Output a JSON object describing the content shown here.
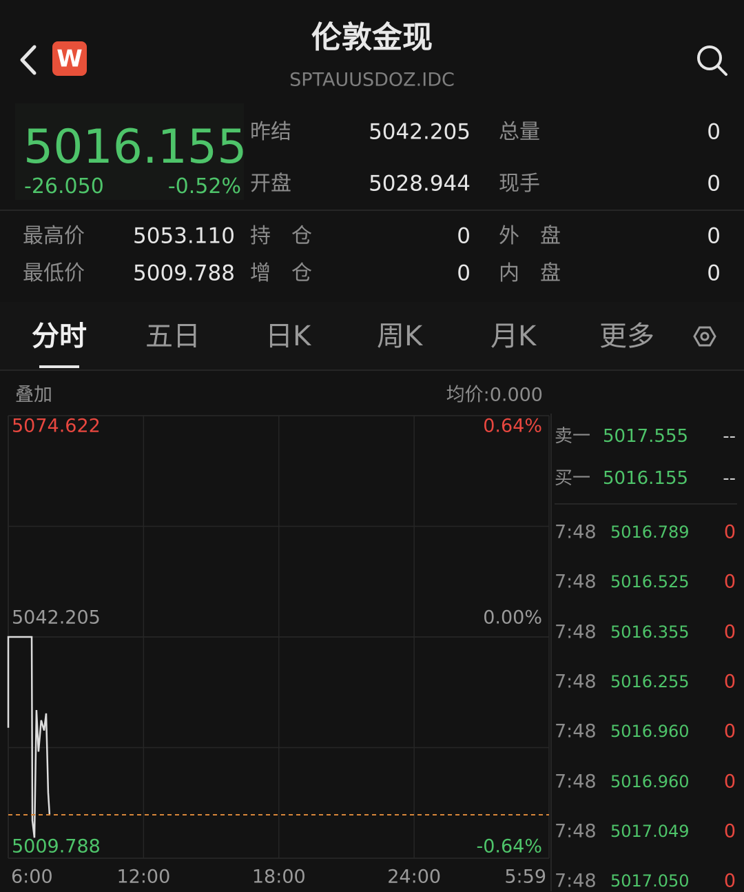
{
  "header": {
    "title": "伦敦金现",
    "code": "SPTAUUSDOZ.IDC",
    "logo": "W"
  },
  "quote": {
    "price": "5016.155",
    "change": "-26.050",
    "change_pct": "-0.52%"
  },
  "stats": [
    [
      {
        "label": "昨结",
        "value": "5042.205"
      },
      {
        "label": "总量",
        "value": "0"
      }
    ],
    [
      {
        "label": "开盘",
        "value": "5028.944"
      },
      {
        "label": "现手",
        "value": "0"
      }
    ],
    [
      {
        "label": "最高价",
        "value": "5053.110"
      },
      {
        "label": "持　仓",
        "value": "0"
      },
      {
        "label": "外　盘",
        "value": "0"
      }
    ],
    [
      {
        "label": "最低价",
        "value": "5009.788"
      },
      {
        "label": "增　仓",
        "value": "0"
      },
      {
        "label": "内　盘",
        "value": "0"
      }
    ]
  ],
  "tabs": [
    "分时",
    "五日",
    "日K",
    "周K",
    "月K",
    "更多"
  ],
  "chart": {
    "type": "line",
    "overlay": "叠加",
    "avg_price": "均价:0.000",
    "ylim": [
      5009.788,
      5074.622
    ],
    "yticks": [
      5074.622,
      5042.205,
      5009.788
    ],
    "y2lim": [
      -0.64,
      0.64
    ],
    "y2ticks": [
      {
        "value": 0.64,
        "label": "0.64%"
      },
      {
        "value": 0,
        "label": "0.00%"
      },
      {
        "value": -0.64,
        "label": "-0.64%"
      }
    ],
    "xlim": [
      6,
      29.983
    ],
    "xticks": [
      {
        "value": 6,
        "label": "6:00"
      },
      {
        "value": 12,
        "label": "12:00"
      },
      {
        "value": 18,
        "label": "18:00"
      },
      {
        "value": 24,
        "label": "24:00"
      },
      {
        "value": 29.983,
        "label": "5:59"
      }
    ],
    "line": {
      "color": "#dddddd",
      "x": [
        6.0,
        6.0,
        7.04,
        7.07,
        7.16,
        7.25,
        7.34,
        7.46,
        7.59,
        7.68,
        7.77,
        7.83
      ],
      "y": [
        5028.9,
        5042.2,
        5042.2,
        5015.3,
        5012.8,
        5031.5,
        5025.4,
        5030.0,
        5028.5,
        5031.0,
        5019.4,
        5016.2
      ]
    }
  },
  "order_book": [
    {
      "side": "卖一",
      "price": "5017.555",
      "volume": "--"
    },
    {
      "side": "买一",
      "price": "5016.155",
      "volume": "--"
    }
  ],
  "trades": [
    {
      "time": "7:48",
      "price": "5016.789",
      "volume": "0"
    },
    {
      "time": "7:48",
      "price": "5016.525",
      "volume": "0"
    },
    {
      "time": "7:48",
      "price": "5016.355",
      "volume": "0"
    },
    {
      "time": "7:48",
      "price": "5016.255",
      "volume": "0"
    },
    {
      "time": "7:48",
      "price": "5016.960",
      "volume": "0"
    },
    {
      "time": "7:48",
      "price": "5016.960",
      "volume": "0"
    },
    {
      "time": "7:48",
      "price": "5017.049",
      "volume": "0"
    },
    {
      "time": "7:48",
      "price": "5017.050",
      "volume": "0"
    }
  ]
}
